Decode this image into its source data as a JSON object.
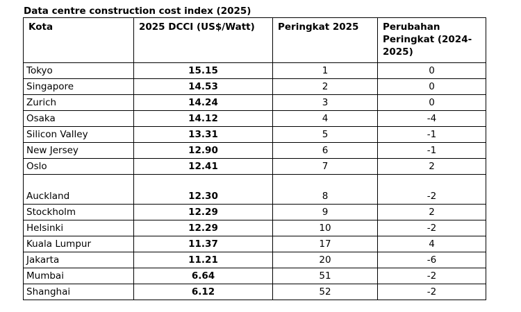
{
  "caption": "Data centre construction cost index (2025)",
  "headers": {
    "city": "Kota",
    "cost": "2025 DCCI (US$/Watt)",
    "rank": "Peringkat 2025",
    "change": "Perubahan Peringkat (2024-2025)"
  },
  "rows": [
    {
      "city": "Tokyo",
      "cost": "15.15",
      "rank": "1",
      "change": "0"
    },
    {
      "city": "Singapore",
      "cost": "14.53",
      "rank": "2",
      "change": "0"
    },
    {
      "city": "Zurich",
      "cost": "14.24",
      "rank": "3",
      "change": "0"
    },
    {
      "city": "Osaka",
      "cost": "14.12",
      "rank": "4",
      "change": "-4"
    },
    {
      "city": "Silicon Valley",
      "cost": "13.31",
      "rank": "5",
      "change": "-1"
    },
    {
      "city": "New Jersey",
      "cost": "12.90",
      "rank": "6",
      "change": "-1"
    },
    {
      "city": "Oslo",
      "cost": "12.41",
      "rank": "7",
      "change": "2"
    },
    {
      "city": "Auckland",
      "cost": "12.30",
      "rank": "8",
      "change": "-2"
    },
    {
      "city": "Stockholm",
      "cost": "12.29",
      "rank": "9",
      "change": "2"
    },
    {
      "city": "Helsinki",
      "cost": "12.29",
      "rank": "10",
      "change": "-2"
    },
    {
      "city": "Kuala Lumpur",
      "cost": "11.37",
      "rank": "17",
      "change": "4"
    },
    {
      "city": "Jakarta",
      "cost": "11.21",
      "rank": "20",
      "change": "-6"
    },
    {
      "city": "Mumbai",
      "cost": "6.64",
      "rank": "51",
      "change": "-2"
    },
    {
      "city": "Shanghai",
      "cost": "6.12",
      "rank": "52",
      "change": "-2"
    }
  ]
}
